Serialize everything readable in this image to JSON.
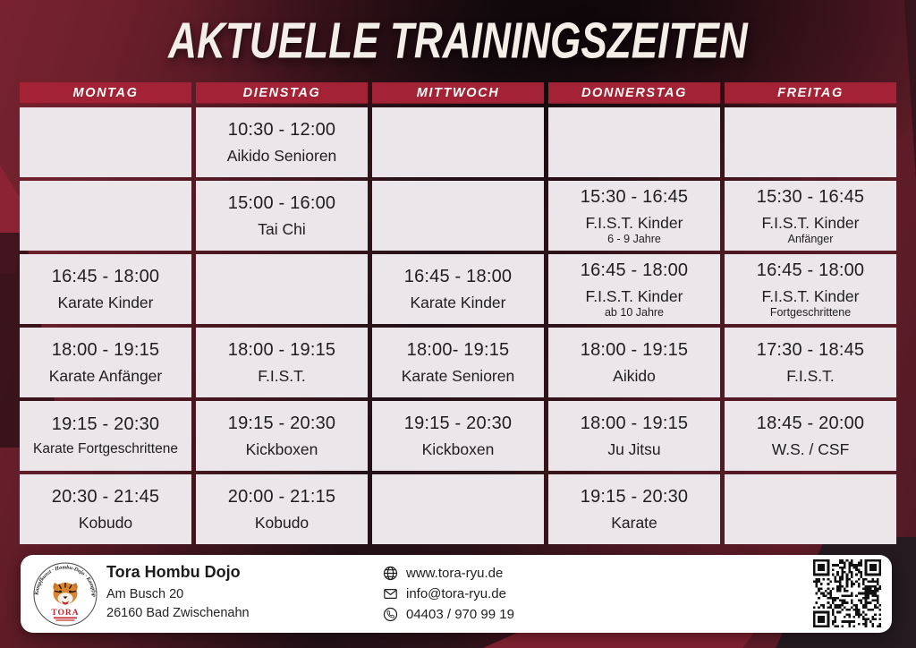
{
  "title": "AKTUELLE TRAININGSZEITEN",
  "colors": {
    "header_red": "#a32236",
    "cell_bg": "#ebe6ea",
    "bg_maroon": "#78222f",
    "bg_dark": "#221117",
    "brand_red": "#c1272d"
  },
  "table": {
    "days": [
      "MONTAG",
      "DIENSTAG",
      "MITTWOCH",
      "DONNERSTAG",
      "FREITAG"
    ],
    "rows": [
      [
        null,
        {
          "time": "10:30 - 12:00",
          "activity": "Aikido Senioren"
        },
        null,
        null,
        null
      ],
      [
        null,
        {
          "time": "15:00 - 16:00",
          "activity": "Tai Chi"
        },
        null,
        {
          "time": "15:30 - 16:45",
          "activity": "F.I.S.T. Kinder",
          "note": "6 - 9 Jahre"
        },
        {
          "time": "15:30 - 16:45",
          "activity": "F.I.S.T. Kinder",
          "note": "Anfänger"
        }
      ],
      [
        {
          "time": "16:45 - 18:00",
          "activity": "Karate Kinder"
        },
        null,
        {
          "time": "16:45 - 18:00",
          "activity": "Karate Kinder"
        },
        {
          "time": "16:45 - 18:00",
          "activity": "F.I.S.T. Kinder",
          "note": "ab 10 Jahre"
        },
        {
          "time": "16:45 - 18:00",
          "activity": "F.I.S.T. Kinder",
          "note": "Fortgeschrittene"
        }
      ],
      [
        {
          "time": "18:00 - 19:15",
          "activity": "Karate Anfänger"
        },
        {
          "time": "18:00 - 19:15",
          "activity": "F.I.S.T."
        },
        {
          "time": "18:00- 19:15",
          "activity": "Karate Senioren"
        },
        {
          "time": "18:00 - 19:15",
          "activity": "Aikido"
        },
        {
          "time": "17:30 - 18:45",
          "activity": "F.I.S.T."
        }
      ],
      [
        {
          "time": "19:15 - 20:30",
          "activity": "Karate Fortgeschrittene"
        },
        {
          "time": "19:15 - 20:30",
          "activity": "Kickboxen"
        },
        {
          "time": "19:15 - 20:30",
          "activity": "Kickboxen"
        },
        {
          "time": "18:00 - 19:15",
          "activity": "Ju Jitsu"
        },
        {
          "time": "18:45 - 20:00",
          "activity": "W.S. / CSF"
        }
      ],
      [
        {
          "time": "20:30 - 21:45",
          "activity": "Kobudo"
        },
        {
          "time": "20:00 - 21:15",
          "activity": "Kobudo"
        },
        null,
        {
          "time": "19:15 - 20:30",
          "activity": "Karate"
        },
        null
      ]
    ]
  },
  "footer": {
    "logo": {
      "ring_text": "Kampfkunst · Hombu-Dojo · Kampfsport",
      "brand": "TORA"
    },
    "org_name": "Tora Hombu Dojo",
    "address_line1": "Am Busch 20",
    "address_line2": "26160 Bad Zwischenahn",
    "website": "www.tora-ryu.de",
    "email": "info@tora-ryu.de",
    "phone": "04403 / 970 99 19"
  }
}
